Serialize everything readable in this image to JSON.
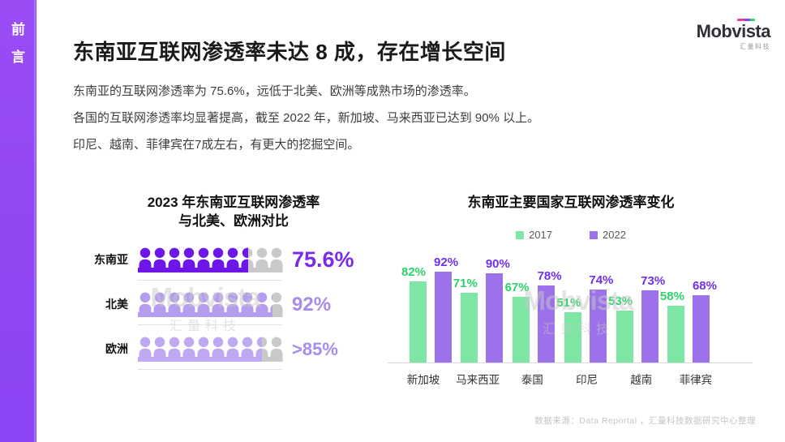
{
  "sidebar": {
    "tab_chars": [
      "前",
      "言"
    ],
    "bg_color": "#9146F2"
  },
  "logo": {
    "name": "Mobvista",
    "subtitle": "汇量科技",
    "accent_colors": [
      "#E83E9C",
      "#8E44F3",
      "#2ED573"
    ]
  },
  "header": {
    "title": "东南亚互联网渗透率未达 8 成，存在增长空间"
  },
  "intro": {
    "lines": [
      "东南亚的互联网渗透率为 75.6%，远低于北美、欧洲等成熟市场的渗透率。",
      "各国的互联网渗透率均显著提高，截至 2022 年，新加坡、马来西亚已达到 90% 以上。",
      "印尼、越南、菲律宾在7成左右，有更大的挖掘空间。"
    ]
  },
  "watermark": {
    "name": "Mobvista",
    "subtitle": "汇量科技"
  },
  "chart_data": [
    {
      "type": "pictogram",
      "title_lines": [
        "2023 年东南亚互联网渗透率",
        "与北美、欧洲对比"
      ],
      "icons_per_row": 10,
      "empty_color": "#C9C9CC",
      "rows": [
        {
          "label": "东南亚",
          "value": 75.6,
          "value_label": "75.6%",
          "fill_color": "#6C17E8",
          "value_color": "#7A2BE8"
        },
        {
          "label": "北美",
          "value": 92,
          "value_label": "92%",
          "fill_color": "#B49CEF",
          "value_color": "#A78BEE"
        },
        {
          "label": "欧洲",
          "value": 85,
          "value_label": ">85%",
          "fill_color": "#BFA9F2",
          "value_color": "#A78BEE"
        }
      ]
    },
    {
      "type": "bar",
      "title": "东南亚主要国家互联网渗透率变化",
      "categories": [
        "新加坡",
        "马来西亚",
        "泰国",
        "印尼",
        "越南",
        "菲律宾"
      ],
      "series": [
        {
          "name": "2017",
          "color": "#7EE6A4",
          "label_color": "#2BD468",
          "values": [
            82,
            71,
            67,
            51,
            53,
            58
          ]
        },
        {
          "name": "2022",
          "color": "#9B72E9",
          "label_color": "#6F30EE",
          "values": [
            92,
            90,
            78,
            74,
            73,
            68
          ]
        }
      ],
      "value_suffix": "%",
      "ylim": [
        0,
        100
      ],
      "legend_position": "top",
      "grid": false,
      "axis_color": "#D8D8D8"
    }
  ],
  "footer": {
    "source": "数据来源：Data Reportal ，汇量科技数据研究中心整理"
  }
}
